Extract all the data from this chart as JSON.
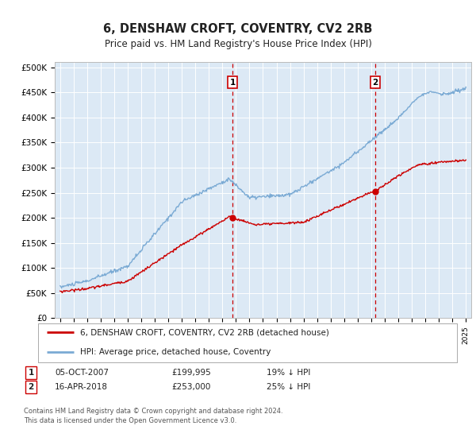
{
  "title": "6, DENSHAW CROFT, COVENTRY, CV2 2RB",
  "subtitle": "Price paid vs. HM Land Registry's House Price Index (HPI)",
  "ylabel_ticks": [
    "£0",
    "£50K",
    "£100K",
    "£150K",
    "£200K",
    "£250K",
    "£300K",
    "£350K",
    "£400K",
    "£450K",
    "£500K"
  ],
  "ytick_values": [
    0,
    50000,
    100000,
    150000,
    200000,
    250000,
    300000,
    350000,
    400000,
    450000,
    500000
  ],
  "ylim": [
    0,
    510000
  ],
  "xlim_left": 1994.6,
  "xlim_right": 2025.4,
  "background_color": "#dce9f5",
  "hpi_color": "#7aaad4",
  "price_color": "#cc0000",
  "marker1_year": 2007.75,
  "marker1_price": 199995,
  "marker2_year": 2018.29,
  "marker2_price": 253000,
  "legend_line1": "6, DENSHAW CROFT, COVENTRY, CV2 2RB (detached house)",
  "legend_line2": "HPI: Average price, detached house, Coventry",
  "footer": "Contains HM Land Registry data © Crown copyright and database right 2024.\nThis data is licensed under the Open Government Licence v3.0.",
  "row1_num": "1",
  "row1_date": "05-OCT-2007",
  "row1_price": "£199,995",
  "row1_pct": "19% ↓ HPI",
  "row2_num": "2",
  "row2_date": "16-APR-2018",
  "row2_price": "£253,000",
  "row2_pct": "25% ↓ HPI"
}
